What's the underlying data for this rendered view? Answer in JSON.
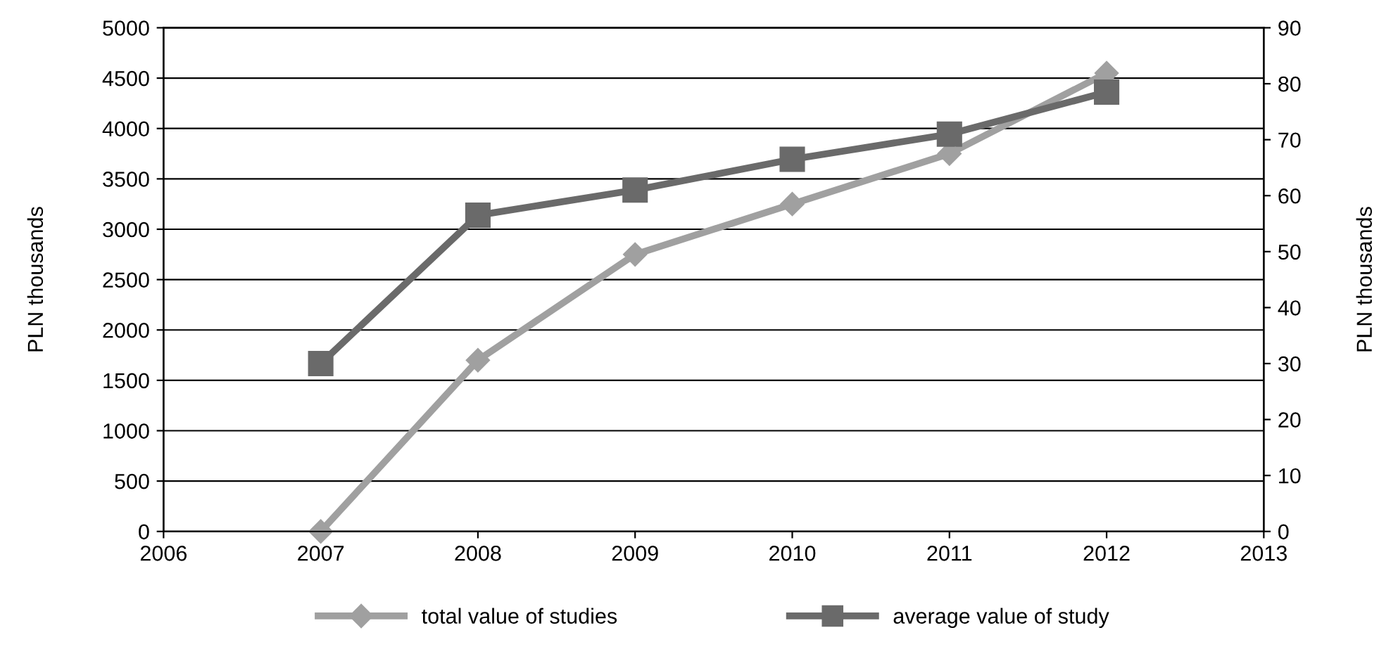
{
  "chart_data": {
    "type": "line",
    "ylabel": "PLN thousands",
    "y2label": "PLN thousands",
    "x": [
      2007,
      2008,
      2009,
      2010,
      2011,
      2012
    ],
    "series": [
      {
        "name": "total value of studies",
        "color": "#a0a0a0",
        "marker": "diamond",
        "values": [
          0,
          1700,
          2750,
          3250,
          3750,
          4550
        ]
      },
      {
        "name": "average value of study",
        "color": "#6a6a6a",
        "marker": "square",
        "axis": "y2",
        "values": [
          30,
          56.5,
          61,
          66.5,
          71,
          78.5
        ]
      }
    ],
    "xlim": [
      2006,
      2013
    ],
    "xticks": [
      2006,
      2007,
      2008,
      2009,
      2010,
      2011,
      2012,
      2013
    ],
    "ylim": [
      0,
      5000
    ],
    "yticks": [
      0,
      500,
      1000,
      1500,
      2000,
      2500,
      3000,
      3500,
      4000,
      4500,
      5000
    ],
    "y2lim": [
      0,
      90
    ],
    "y2ticks": [
      0,
      10,
      20,
      30,
      40,
      50,
      60,
      70,
      80,
      90
    ],
    "grid": "y",
    "legend": "bottom",
    "line_style": "solid"
  }
}
